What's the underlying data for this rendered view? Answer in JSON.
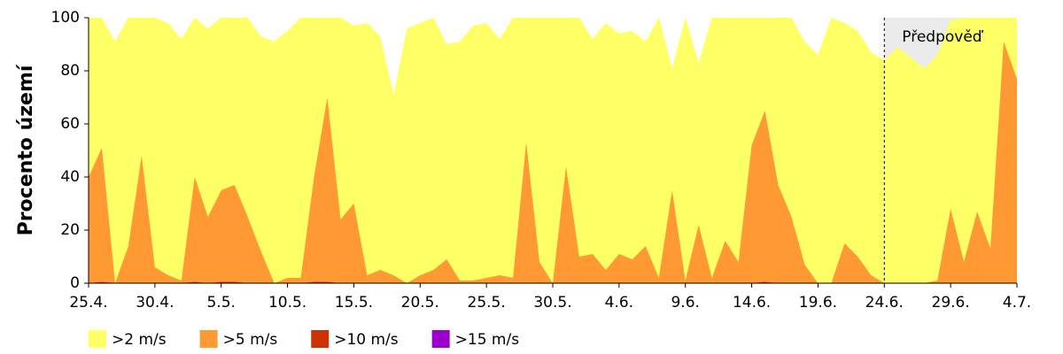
{
  "chart_data": {
    "type": "area",
    "ylabel": "Procento území",
    "categories": [
      "25.4.",
      null,
      null,
      null,
      null,
      "30.4.",
      null,
      null,
      null,
      null,
      "5.5.",
      null,
      null,
      null,
      null,
      "10.5.",
      null,
      null,
      null,
      null,
      "15.5.",
      null,
      null,
      null,
      null,
      "20.5.",
      null,
      null,
      null,
      null,
      "25.5.",
      null,
      null,
      null,
      null,
      "30.5.",
      null,
      null,
      null,
      null,
      "4.6.",
      null,
      null,
      null,
      null,
      "9.6.",
      null,
      null,
      null,
      null,
      "14.6.",
      null,
      null,
      null,
      null,
      "19.6.",
      null,
      null,
      null,
      null,
      "24.6.",
      null,
      null,
      null,
      null,
      "29.6.",
      null,
      null,
      null,
      null,
      "4.7."
    ],
    "series": [
      {
        "name": ">2 m/s",
        "color": "#ffff66",
        "values": [
          100,
          100,
          91,
          100,
          100,
          100,
          98,
          92,
          100,
          96,
          100,
          100,
          100,
          93,
          91,
          95,
          100,
          100,
          100,
          100,
          97,
          98,
          93,
          71,
          96,
          98,
          100,
          90,
          91,
          97,
          98,
          92,
          100,
          100,
          100,
          100,
          100,
          100,
          92,
          98,
          94,
          95,
          91,
          100,
          81,
          100,
          83,
          100,
          100,
          100,
          100,
          100,
          100,
          100,
          91,
          86,
          100,
          98,
          95,
          87,
          84,
          89,
          85,
          81,
          86,
          99,
          100,
          100,
          100,
          100,
          100
        ]
      },
      {
        "name": ">5 m/s",
        "color": "#ff9933",
        "values": [
          40,
          51,
          0,
          14,
          48,
          6,
          3,
          1,
          40,
          25,
          35,
          37,
          25,
          12,
          0,
          2,
          2,
          40,
          70,
          24,
          30,
          3,
          5,
          3,
          0,
          3,
          5,
          9,
          1,
          1,
          2,
          3,
          2,
          53,
          8,
          0,
          44,
          10,
          11,
          5,
          11,
          9,
          14,
          2,
          35,
          1,
          22,
          2,
          16,
          8,
          52,
          65,
          37,
          25,
          7,
          0,
          0,
          15,
          10,
          3,
          0,
          0,
          0,
          0,
          1,
          28,
          8,
          27,
          13,
          91,
          77
        ]
      },
      {
        "name": ">10 m/s",
        "color": "#cc3300",
        "values": [
          0,
          0.5,
          0,
          0,
          0,
          0,
          0,
          0,
          0.5,
          0,
          0.5,
          0.5,
          0,
          0,
          0,
          0,
          0,
          0.5,
          0.5,
          0,
          0,
          0,
          0,
          0,
          0,
          0,
          0,
          0,
          0,
          0,
          0,
          0,
          0,
          0,
          0,
          0,
          0,
          0,
          0,
          0,
          0,
          0,
          0,
          0,
          0,
          0,
          0,
          0,
          0,
          0,
          0,
          0.5,
          0,
          0,
          0,
          0,
          0,
          0,
          0,
          0,
          0,
          0,
          0,
          0,
          0,
          0,
          0,
          0,
          0,
          0,
          0
        ]
      },
      {
        "name": ">15 m/s",
        "color": "#9900cc",
        "values": [
          0,
          0,
          0,
          0,
          0,
          0,
          0,
          0,
          0,
          0,
          0,
          0,
          0,
          0,
          0,
          0,
          0,
          0,
          0,
          0,
          0,
          0,
          0,
          0,
          0,
          0,
          0,
          0,
          0,
          0,
          0,
          0,
          0,
          0,
          0,
          0,
          0,
          0,
          0,
          0,
          0,
          0,
          0,
          0,
          0,
          0,
          0,
          0,
          0,
          0,
          0,
          0,
          0,
          0,
          0,
          0,
          0,
          0,
          0,
          0,
          0,
          0,
          0,
          0,
          0,
          0,
          0,
          0,
          0,
          0,
          0
        ]
      }
    ],
    "ylim": [
      0,
      100
    ],
    "yticks": [
      0,
      20,
      40,
      60,
      80,
      100
    ],
    "annotation": {
      "text": "Předpověď",
      "x": "24.6.",
      "shade": "#ebebeb"
    },
    "legend": "bottom-left"
  }
}
